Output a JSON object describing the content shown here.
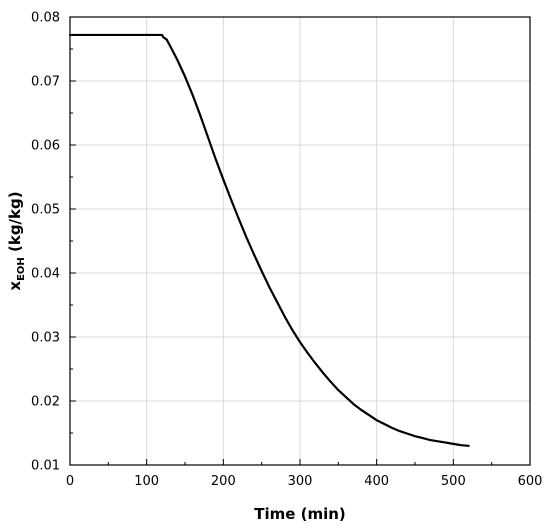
{
  "chart_data": {
    "type": "line",
    "xlabel": "Time (min)",
    "ylabel": {
      "base": "x",
      "subscript": "EOH",
      "rest": " (kg/kg)"
    },
    "xlim": [
      0,
      600
    ],
    "ylim": [
      0.01,
      0.08
    ],
    "xticks": [
      0,
      100,
      200,
      300,
      400,
      500,
      600
    ],
    "yticks": [
      0.01,
      0.02,
      0.03,
      0.04,
      0.05,
      0.06,
      0.07,
      0.08
    ],
    "xtick_labels": [
      "0",
      "100",
      "200",
      "300",
      "400",
      "500",
      "600"
    ],
    "ytick_labels": [
      "0.01",
      "0.02",
      "0.03",
      "0.04",
      "0.05",
      "0.06",
      "0.07",
      "0.08"
    ],
    "grid": true,
    "series": [
      {
        "color": "#000000",
        "x": [
          0,
          120,
          122,
          126,
          130,
          140,
          150,
          160,
          170,
          180,
          190,
          200,
          210,
          220,
          230,
          240,
          250,
          260,
          270,
          280,
          290,
          300,
          310,
          320,
          330,
          340,
          350,
          360,
          370,
          380,
          390,
          400,
          410,
          420,
          430,
          440,
          450,
          460,
          470,
          480,
          490,
          500,
          510,
          520
        ],
        "y": [
          0.0772,
          0.0772,
          0.0768,
          0.0765,
          0.0756,
          0.0733,
          0.0707,
          0.0678,
          0.0646,
          0.0612,
          0.0578,
          0.0546,
          0.0515,
          0.0485,
          0.0456,
          0.0429,
          0.0403,
          0.0378,
          0.0355,
          0.0332,
          0.0311,
          0.0292,
          0.0275,
          0.0259,
          0.0244,
          0.023,
          0.0217,
          0.0206,
          0.0195,
          0.0186,
          0.0178,
          0.017,
          0.0164,
          0.0158,
          0.0153,
          0.0149,
          0.0145,
          0.0142,
          0.0139,
          0.0137,
          0.0135,
          0.0133,
          0.0131,
          0.013
        ]
      }
    ]
  }
}
